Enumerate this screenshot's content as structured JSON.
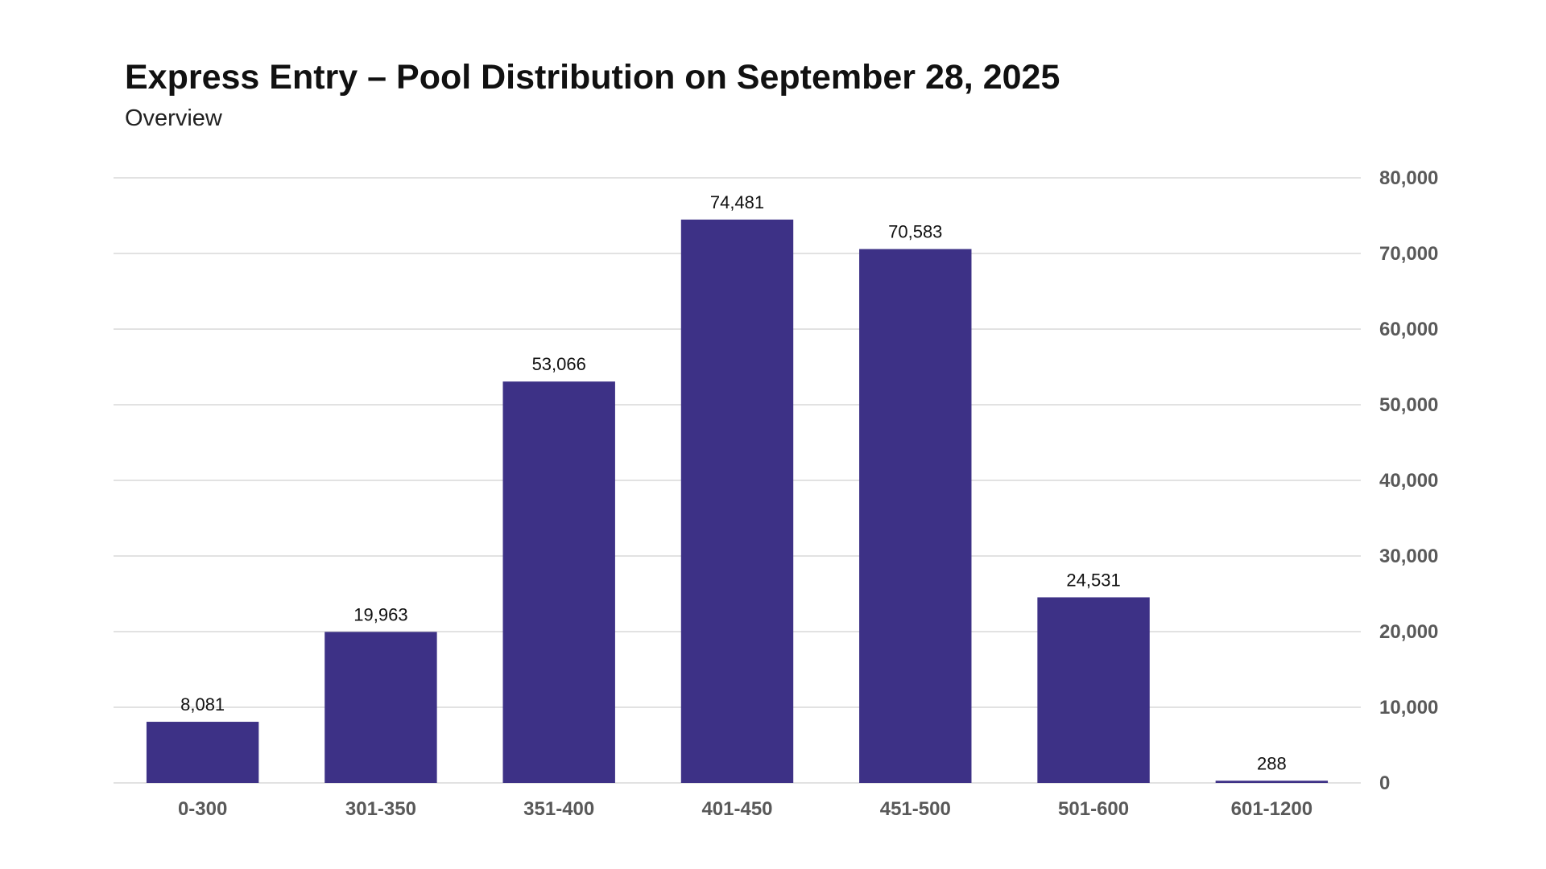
{
  "chart_data": {
    "type": "bar",
    "title": "Express Entry – Pool Distribution on September 28, 2025",
    "subtitle": "Overview",
    "categories": [
      "0-300",
      "301-350",
      "351-400",
      "401-450",
      "451-500",
      "501-600",
      "601-1200"
    ],
    "values": [
      8081,
      19963,
      53066,
      74481,
      70583,
      24531,
      288
    ],
    "data_labels": [
      "8,081",
      "19,963",
      "53,066",
      "74,481",
      "70,583",
      "24,531",
      "288"
    ],
    "xlabel": "",
    "ylabel": "",
    "ylim": [
      0,
      80000
    ],
    "yticks": [
      0,
      10000,
      20000,
      30000,
      40000,
      50000,
      60000,
      70000,
      80000
    ],
    "ytick_labels": [
      "0",
      "10,000",
      "20,000",
      "30,000",
      "40,000",
      "50,000",
      "60,000",
      "70,000",
      "80,000"
    ],
    "y_axis_position": "right",
    "grid": true,
    "legend": "none",
    "colors": {
      "bar": "#3d3186",
      "gridline": "#d9d9d9",
      "tick_label": "#595959"
    }
  }
}
